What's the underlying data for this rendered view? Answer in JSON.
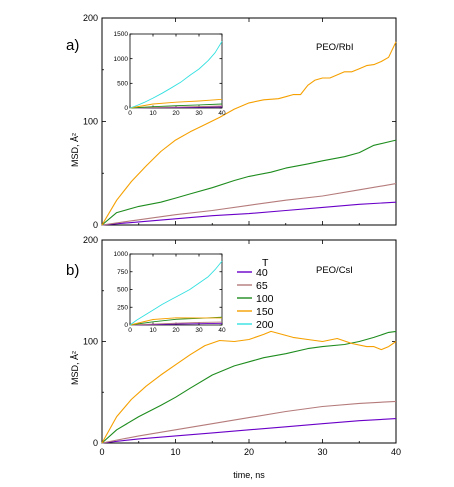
{
  "colors": {
    "40": "#6a00c8",
    "65": "#b57b7b",
    "100": "#1e8c1e",
    "150": "#f5a000",
    "200": "#33e0e0"
  },
  "legend": {
    "title": "T",
    "entries": [
      {
        "label": "40",
        "color_key": "40"
      },
      {
        "label": "65",
        "color_key": "65"
      },
      {
        "label": "100",
        "color_key": "100"
      },
      {
        "label": "150",
        "color_key": "150"
      },
      {
        "label": "200",
        "color_key": "200"
      }
    ]
  },
  "chart_data": [
    {
      "type": "line",
      "panel_label": "a)",
      "title": "PEO/RbI",
      "xlabel": "",
      "ylabel": "MSD, Å²",
      "xlim": [
        0,
        40
      ],
      "ylim": [
        0,
        200
      ],
      "xticks": [
        0,
        10,
        20,
        30,
        40
      ],
      "xtick_labels": [
        "",
        "",
        "",
        "",
        ""
      ],
      "yticks": [
        0,
        100,
        200
      ],
      "ytick_labels": [
        "0",
        "100",
        "200"
      ],
      "series": [
        {
          "name": "40",
          "color_key": "40",
          "x": [
            0,
            5,
            10,
            15,
            20,
            25,
            30,
            35,
            40
          ],
          "y": [
            0,
            3,
            6,
            9,
            11,
            14,
            17,
            20,
            22
          ]
        },
        {
          "name": "65",
          "color_key": "65",
          "x": [
            0,
            5,
            10,
            15,
            20,
            25,
            30,
            35,
            40
          ],
          "y": [
            0,
            5,
            10,
            14,
            19,
            24,
            28,
            34,
            40
          ]
        },
        {
          "name": "100",
          "color_key": "100",
          "x": [
            0,
            2,
            5,
            8,
            10,
            12,
            15,
            18,
            20,
            23,
            25,
            28,
            30,
            33,
            35,
            37,
            40
          ],
          "y": [
            0,
            12,
            18,
            22,
            26,
            30,
            36,
            43,
            47,
            51,
            55,
            59,
            62,
            66,
            70,
            77,
            82
          ]
        },
        {
          "name": "150",
          "color_key": "150",
          "x": [
            0,
            2,
            4,
            6,
            8,
            10,
            12,
            14,
            16,
            18,
            20,
            22,
            24,
            25,
            26,
            27,
            28,
            29,
            30,
            31,
            32,
            33,
            34,
            35,
            36,
            37,
            38,
            39,
            40
          ],
          "y": [
            0,
            24,
            42,
            57,
            71,
            82,
            90,
            97,
            104,
            112,
            118,
            121,
            122,
            124,
            126,
            126,
            135,
            140,
            142,
            142,
            145,
            148,
            148,
            151,
            154,
            155,
            158,
            162,
            177
          ]
        }
      ],
      "inset": {
        "xlim": [
          0,
          40
        ],
        "ylim": [
          0,
          1500
        ],
        "xticks": [
          0,
          10,
          20,
          30,
          40
        ],
        "xtick_labels": [
          "0",
          "10",
          "20",
          "30",
          "40"
        ],
        "yticks": [
          0,
          500,
          1000,
          1500
        ],
        "ytick_labels": [
          "0",
          "500",
          "1000",
          "1500"
        ],
        "series": [
          {
            "name": "40",
            "color_key": "40",
            "x": [
              0,
              10,
              20,
              30,
              40
            ],
            "y": [
              0,
              6,
              11,
              17,
              22
            ]
          },
          {
            "name": "65",
            "color_key": "65",
            "x": [
              0,
              10,
              20,
              30,
              40
            ],
            "y": [
              0,
              10,
              19,
              28,
              40
            ]
          },
          {
            "name": "100",
            "color_key": "100",
            "x": [
              0,
              10,
              20,
              30,
              40
            ],
            "y": [
              0,
              26,
              47,
              62,
              82
            ]
          },
          {
            "name": "150",
            "color_key": "150",
            "x": [
              0,
              10,
              20,
              30,
              40
            ],
            "y": [
              0,
              82,
              118,
              142,
              177
            ]
          },
          {
            "name": "200",
            "color_key": "200",
            "x": [
              0,
              3,
              6,
              10,
              14,
              18,
              22,
              26,
              30,
              34,
              37,
              40
            ],
            "y": [
              0,
              50,
              110,
              200,
              300,
              410,
              520,
              660,
              790,
              960,
              1120,
              1350
            ]
          }
        ]
      }
    },
    {
      "type": "line",
      "panel_label": "b)",
      "title": "PEO/CsI",
      "xlabel": "time, ns",
      "ylabel": "MSD, Å²",
      "xlim": [
        0,
        40
      ],
      "ylim": [
        0,
        200
      ],
      "xticks": [
        0,
        10,
        20,
        30,
        40
      ],
      "xtick_labels": [
        "0",
        "10",
        "20",
        "30",
        "40"
      ],
      "yticks": [
        0,
        100,
        200
      ],
      "ytick_labels": [
        "0",
        "100",
        "200"
      ],
      "series": [
        {
          "name": "40",
          "color_key": "40",
          "x": [
            0,
            5,
            10,
            15,
            20,
            25,
            30,
            35,
            40
          ],
          "y": [
            0,
            4,
            7,
            10,
            13,
            16,
            19,
            22,
            24
          ]
        },
        {
          "name": "65",
          "color_key": "65",
          "x": [
            0,
            5,
            10,
            15,
            20,
            25,
            30,
            35,
            40
          ],
          "y": [
            0,
            7,
            13,
            19,
            25,
            31,
            36,
            39,
            41
          ]
        },
        {
          "name": "100",
          "color_key": "100",
          "x": [
            0,
            2,
            5,
            8,
            10,
            12,
            15,
            18,
            20,
            22,
            25,
            28,
            30,
            33,
            35,
            37,
            39,
            40
          ],
          "y": [
            0,
            13,
            26,
            37,
            45,
            54,
            67,
            76,
            80,
            84,
            88,
            93,
            95,
            97,
            100,
            104,
            109,
            110
          ]
        },
        {
          "name": "150",
          "color_key": "150",
          "x": [
            0,
            2,
            4,
            6,
            8,
            10,
            12,
            14,
            16,
            18,
            20,
            22,
            23,
            24,
            26,
            28,
            30,
            32,
            34,
            36,
            37,
            38,
            39,
            40
          ],
          "y": [
            0,
            26,
            43,
            56,
            67,
            77,
            87,
            96,
            101,
            100,
            102,
            107,
            110,
            108,
            104,
            102,
            100,
            103,
            98,
            95,
            95,
            92,
            95,
            100
          ]
        }
      ],
      "inset": {
        "xlim": [
          0,
          40
        ],
        "ylim": [
          0,
          1000
        ],
        "xticks": [
          0,
          10,
          20,
          30,
          40
        ],
        "xtick_labels": [
          "0",
          "10",
          "20",
          "30",
          "40"
        ],
        "yticks": [
          0,
          250,
          500,
          750,
          1000
        ],
        "ytick_labels": [
          "0",
          "250",
          "500",
          "750",
          "1000"
        ],
        "series": [
          {
            "name": "40",
            "color_key": "40",
            "x": [
              0,
              10,
              20,
              30,
              40
            ],
            "y": [
              0,
              7,
              13,
              19,
              24
            ]
          },
          {
            "name": "65",
            "color_key": "65",
            "x": [
              0,
              10,
              20,
              30,
              40
            ],
            "y": [
              0,
              13,
              25,
              36,
              41
            ]
          },
          {
            "name": "100",
            "color_key": "100",
            "x": [
              0,
              10,
              20,
              30,
              40
            ],
            "y": [
              0,
              45,
              80,
              95,
              110
            ]
          },
          {
            "name": "150",
            "color_key": "150",
            "x": [
              0,
              10,
              20,
              30,
              40
            ],
            "y": [
              0,
              77,
              102,
              100,
              100
            ]
          },
          {
            "name": "200",
            "color_key": "200",
            "x": [
              0,
              3,
              6,
              10,
              14,
              18,
              22,
              26,
              30,
              34,
              37,
              40
            ],
            "y": [
              0,
              70,
              130,
              210,
              290,
              360,
              430,
              500,
              590,
              680,
              780,
              900
            ]
          }
        ]
      }
    }
  ]
}
